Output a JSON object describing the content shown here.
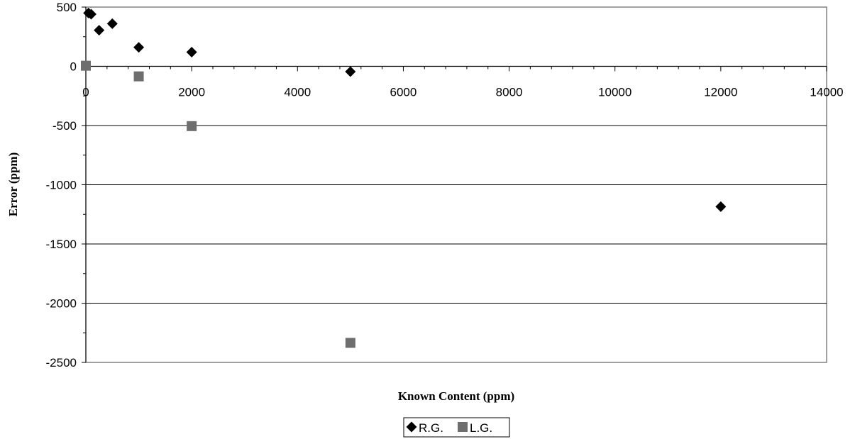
{
  "chart_data": {
    "type": "scatter",
    "title": "",
    "xlabel": "Known Content (ppm)",
    "ylabel": "Error (ppm)",
    "xlim": [
      0,
      14000
    ],
    "ylim": [
      -2500,
      500
    ],
    "x_ticks": [
      0,
      2000,
      4000,
      6000,
      8000,
      10000,
      12000,
      14000
    ],
    "y_ticks": [
      500,
      0,
      -500,
      -1000,
      -1500,
      -2000,
      -2500
    ],
    "x_tick_labels": [
      "0",
      "2000",
      "4000",
      "6000",
      "8000",
      "10000",
      "12000",
      "14000"
    ],
    "y_tick_labels": [
      "500",
      "0",
      "-500",
      "-1000",
      "-1500",
      "-2000",
      "-2500"
    ],
    "grid": "horizontal",
    "legend_position": "bottom",
    "series": [
      {
        "name": "R.G.",
        "marker": "diamond",
        "color": "#000000",
        "points": [
          {
            "x": 50,
            "y": 450
          },
          {
            "x": 100,
            "y": 440
          },
          {
            "x": 250,
            "y": 305
          },
          {
            "x": 500,
            "y": 360
          },
          {
            "x": 1000,
            "y": 160
          },
          {
            "x": 2000,
            "y": 120
          },
          {
            "x": 5000,
            "y": -45
          },
          {
            "x": 12000,
            "y": -1185
          }
        ]
      },
      {
        "name": "L.G.",
        "marker": "square",
        "color": "#6e6e6e",
        "points": [
          {
            "x": 0,
            "y": 5
          },
          {
            "x": 1000,
            "y": -85
          },
          {
            "x": 2000,
            "y": -505
          },
          {
            "x": 5000,
            "y": -2335
          }
        ]
      }
    ]
  }
}
